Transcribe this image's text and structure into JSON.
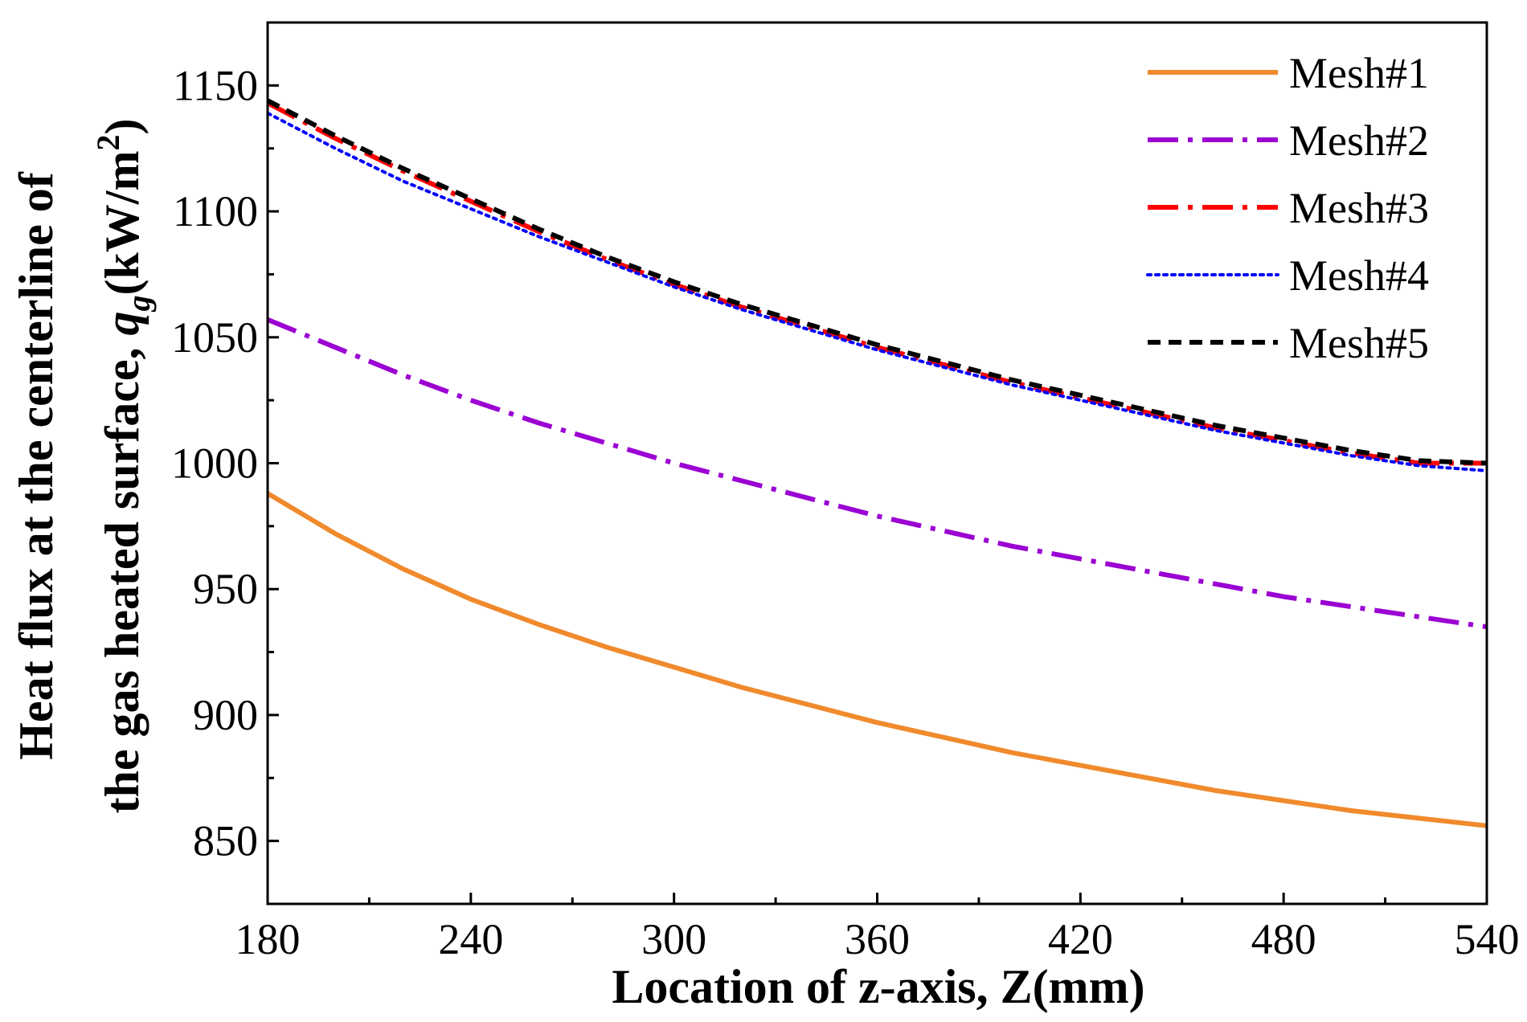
{
  "chart_data": {
    "type": "line",
    "title": "",
    "xlabel": "Location of z-axis, Z(mm)",
    "ylabel_line1": "Heat flux at the centerline of",
    "ylabel_line2_prefix": "the gas heated surface, ",
    "ylabel_symbol": "q",
    "ylabel_subscript": "g",
    "ylabel_unit_prefix": "(kW/m",
    "ylabel_unit_power": "2",
    "ylabel_unit_suffix": ")",
    "xlim": [
      180,
      540
    ],
    "ylim": [
      825,
      1175
    ],
    "xticks": [
      180,
      240,
      300,
      360,
      420,
      480,
      540
    ],
    "yticks": [
      850,
      900,
      950,
      1000,
      1050,
      1100,
      1150
    ],
    "x": [
      180,
      200,
      220,
      240,
      260,
      280,
      300,
      320,
      340,
      360,
      380,
      400,
      420,
      440,
      460,
      480,
      500,
      520,
      540
    ],
    "grid": false,
    "legend_position": "top-right",
    "series": [
      {
        "name": "Mesh#1",
        "color": "#F08A2C",
        "dash": "solid",
        "values": [
          988,
          972,
          958,
          946,
          936,
          927,
          919,
          911,
          904,
          897,
          891,
          885,
          880,
          875,
          870,
          866,
          862,
          859,
          856
        ]
      },
      {
        "name": "Mesh#2",
        "color": "#9B00D3",
        "dash": "dashdot",
        "values": [
          1057,
          1046,
          1035,
          1025,
          1016,
          1008,
          1000,
          993,
          986,
          979,
          973,
          967,
          962,
          957,
          952,
          947,
          943,
          939,
          935
        ]
      },
      {
        "name": "Mesh#3",
        "color": "#FF0000",
        "dash": "dashdot",
        "values": [
          1143,
          1129,
          1116,
          1104,
          1092,
          1081,
          1071,
          1062,
          1054,
          1046,
          1039,
          1032,
          1026,
          1020,
          1014,
          1009,
          1004,
          1000,
          1000
        ]
      },
      {
        "name": "Mesh#4",
        "color": "#0000FF",
        "dash": "dotted",
        "values": [
          1139,
          1125,
          1112,
          1101,
          1090,
          1080,
          1070,
          1061,
          1053,
          1045,
          1038,
          1031,
          1025,
          1019,
          1013,
          1008,
          1003,
          999,
          997
        ]
      },
      {
        "name": "Mesh#5",
        "color": "#000000",
        "dash": "dashed",
        "values": [
          1144,
          1130,
          1117,
          1105,
          1093,
          1082,
          1072,
          1063,
          1055,
          1047,
          1040,
          1033,
          1027,
          1021,
          1015,
          1010,
          1005,
          1001,
          1000
        ]
      }
    ]
  }
}
